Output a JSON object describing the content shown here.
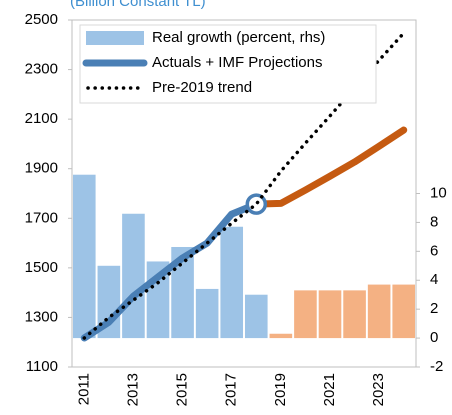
{
  "chart_data": {
    "type": "bar_line",
    "title": "(Billion Constant TL)",
    "categories": [
      "2011",
      null,
      "2013",
      null,
      "2015",
      null,
      "2017",
      null,
      "2019",
      null,
      "2021",
      null,
      "2023",
      null
    ],
    "bar_series": {
      "name": "Real growth (percent, rhs)",
      "axis": "y2",
      "values": [
        11.3,
        5.0,
        8.6,
        5.3,
        6.3,
        3.4,
        7.7,
        3.0,
        0.3,
        3.3,
        3.3,
        3.3,
        3.7,
        3.7
      ],
      "color": "#9dc3e6",
      "projection_color": "#f4b183",
      "projection_from": 8
    },
    "series": [
      {
        "name": "Actuals + IMF Projections",
        "color": "#4a7fb5",
        "projection_color": "#c55a11",
        "projection_from": 7,
        "values": [
          1217,
          1281,
          1386,
          1463,
          1540,
          1600,
          1717,
          1757,
          1760,
          1814,
          1870,
          1927,
          1991,
          2056
        ]
      },
      {
        "name": "Pre-2019 trend",
        "color": "#000000",
        "style": "dotted",
        "values": [
          1217,
          1300,
          1370,
          1440,
          1520,
          1600,
          1680,
          1757,
          1890,
          2003,
          2113,
          2226,
          2338,
          2447
        ]
      }
    ],
    "ylim": [
      1100,
      2500
    ],
    "yticks": [
      1100,
      1300,
      1500,
      1700,
      1900,
      2100,
      2300,
      2500
    ],
    "y2lim": [
      -2,
      22
    ],
    "y2ticks": [
      -2,
      0,
      2,
      4,
      6,
      8,
      10
    ],
    "legend": "upper left"
  }
}
